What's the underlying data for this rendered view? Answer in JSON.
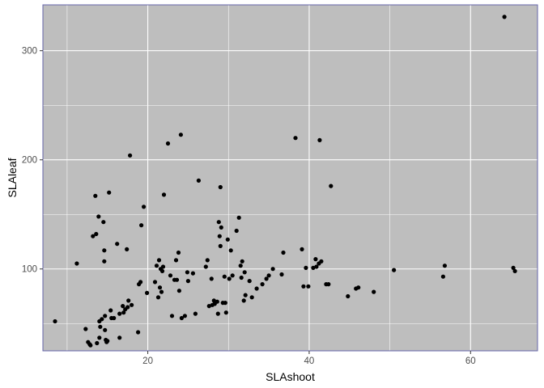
{
  "chart_data": {
    "type": "scatter",
    "title": "",
    "xlabel": "SLAshoot",
    "ylabel": "SLAleaf",
    "xlim": [
      7,
      68.3
    ],
    "ylim": [
      25,
      342
    ],
    "x_ticks": [
      20,
      40,
      60
    ],
    "y_ticks": [
      100,
      200,
      300
    ],
    "x_minor": [
      10,
      30,
      50
    ],
    "y_minor": [
      50,
      150,
      250
    ],
    "grid": true,
    "panel_color": "#bebebe",
    "panel_border_color": "#6666aa",
    "grid_color": "#ffffff",
    "point_color": "#000000",
    "points": [
      [
        8.5,
        52
      ],
      [
        11.2,
        105
      ],
      [
        12.3,
        45
      ],
      [
        12.6,
        33
      ],
      [
        12.8,
        31
      ],
      [
        12.9,
        30
      ],
      [
        13.2,
        130
      ],
      [
        13.5,
        167
      ],
      [
        13.6,
        132
      ],
      [
        13.7,
        32
      ],
      [
        13.9,
        148
      ],
      [
        14.0,
        52
      ],
      [
        14.0,
        37
      ],
      [
        14.1,
        47
      ],
      [
        14.3,
        54
      ],
      [
        14.5,
        143
      ],
      [
        14.6,
        117
      ],
      [
        14.6,
        107
      ],
      [
        14.7,
        44
      ],
      [
        14.7,
        57
      ],
      [
        14.8,
        35
      ],
      [
        14.9,
        33
      ],
      [
        15.0,
        34
      ],
      [
        15.2,
        170
      ],
      [
        15.4,
        62
      ],
      [
        15.5,
        55
      ],
      [
        15.8,
        55
      ],
      [
        16.2,
        123
      ],
      [
        16.5,
        37
      ],
      [
        16.5,
        59
      ],
      [
        16.9,
        66
      ],
      [
        17.0,
        60
      ],
      [
        17.2,
        63
      ],
      [
        17.4,
        118
      ],
      [
        17.5,
        65
      ],
      [
        17.6,
        71
      ],
      [
        17.8,
        204
      ],
      [
        18.0,
        67
      ],
      [
        18.8,
        42
      ],
      [
        18.9,
        86
      ],
      [
        19.1,
        88
      ],
      [
        19.2,
        140
      ],
      [
        19.5,
        157
      ],
      [
        19.9,
        78
      ],
      [
        20.9,
        88
      ],
      [
        21.1,
        103
      ],
      [
        21.3,
        74
      ],
      [
        21.4,
        108
      ],
      [
        21.5,
        83
      ],
      [
        21.6,
        100
      ],
      [
        21.7,
        79
      ],
      [
        21.8,
        98
      ],
      [
        21.9,
        102
      ],
      [
        22.0,
        168
      ],
      [
        22.5,
        215
      ],
      [
        22.8,
        94
      ],
      [
        23.0,
        57
      ],
      [
        23.3,
        90
      ],
      [
        23.5,
        108
      ],
      [
        23.6,
        90
      ],
      [
        23.8,
        115
      ],
      [
        23.9,
        80
      ],
      [
        24.1,
        223
      ],
      [
        24.2,
        55
      ],
      [
        24.6,
        57
      ],
      [
        24.9,
        97
      ],
      [
        25.0,
        89
      ],
      [
        25.6,
        96
      ],
      [
        25.9,
        59
      ],
      [
        26.3,
        181
      ],
      [
        27.2,
        102
      ],
      [
        27.4,
        108
      ],
      [
        27.6,
        66
      ],
      [
        27.9,
        91
      ],
      [
        28.0,
        67
      ],
      [
        28.2,
        71
      ],
      [
        28.3,
        68
      ],
      [
        28.6,
        70
      ],
      [
        28.7,
        59
      ],
      [
        28.8,
        143
      ],
      [
        28.9,
        130
      ],
      [
        29.0,
        175
      ],
      [
        29.0,
        121
      ],
      [
        29.1,
        138
      ],
      [
        29.3,
        69
      ],
      [
        29.5,
        93
      ],
      [
        29.6,
        69
      ],
      [
        29.7,
        60
      ],
      [
        29.9,
        127
      ],
      [
        30.1,
        91
      ],
      [
        30.3,
        117
      ],
      [
        30.5,
        94
      ],
      [
        31.0,
        135
      ],
      [
        31.3,
        147
      ],
      [
        31.5,
        103
      ],
      [
        31.6,
        92
      ],
      [
        31.7,
        107
      ],
      [
        31.9,
        71
      ],
      [
        32.0,
        97
      ],
      [
        32.1,
        76
      ],
      [
        32.6,
        89
      ],
      [
        32.9,
        74
      ],
      [
        33.5,
        82
      ],
      [
        34.2,
        86
      ],
      [
        34.7,
        91
      ],
      [
        35.0,
        94
      ],
      [
        35.5,
        100
      ],
      [
        36.6,
        95
      ],
      [
        36.8,
        115
      ],
      [
        38.3,
        220
      ],
      [
        39.1,
        118
      ],
      [
        39.3,
        84
      ],
      [
        39.6,
        101
      ],
      [
        39.9,
        84
      ],
      [
        40.5,
        101
      ],
      [
        40.8,
        109
      ],
      [
        40.9,
        102
      ],
      [
        41.2,
        105
      ],
      [
        41.3,
        218
      ],
      [
        41.5,
        107
      ],
      [
        42.1,
        86
      ],
      [
        42.4,
        86
      ],
      [
        42.7,
        176
      ],
      [
        44.8,
        75
      ],
      [
        45.8,
        82
      ],
      [
        46.1,
        83
      ],
      [
        48.0,
        79
      ],
      [
        50.5,
        99
      ],
      [
        56.6,
        93
      ],
      [
        56.8,
        103
      ],
      [
        64.2,
        331
      ],
      [
        65.3,
        101
      ],
      [
        65.5,
        98
      ]
    ]
  }
}
